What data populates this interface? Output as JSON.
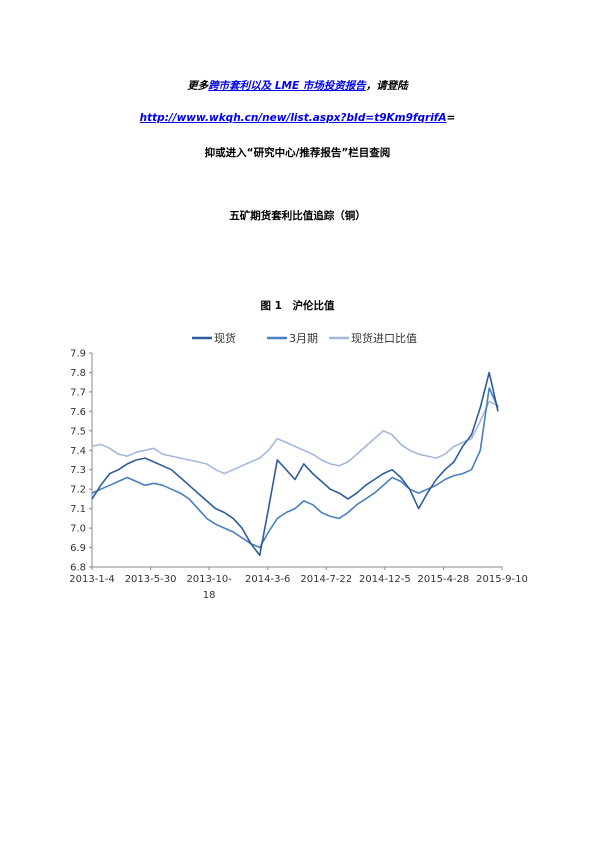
{
  "header": {
    "line1_pre": "更多",
    "line1_link": "跨市套利以及 LME 市场投资报告",
    "line1_post": "，请登陆",
    "url": "http://www.wkqh.cn/new/list.aspx?bId=t9Km9fqrifA",
    "url_suffix": "=",
    "line3": "抑或进入“研究中心/推荐报告”栏目查阅"
  },
  "section_title": "五矿期货套利比值追踪（铜）",
  "figure_caption": "图 1　沪伦比值",
  "colors": {
    "spot": "#2e5c9a",
    "m3": "#4a7fc1",
    "import": "#a2b9dc"
  },
  "chart_data": {
    "type": "line",
    "x_ticks": [
      "2013-1-4",
      "2013-5-30",
      "2013-10-18",
      "2014-3-6",
      "2014-7-22",
      "2014-12-5",
      "2015-4-28",
      "2015-9-10"
    ],
    "y_ticks": [
      "6.8",
      "6.9",
      "7.0",
      "7.1",
      "7.2",
      "7.3",
      "7.4",
      "7.5",
      "7.6",
      "7.7",
      "7.8",
      "7.9"
    ],
    "ylim": [
      6.8,
      7.9
    ],
    "legend_position": "top",
    "series": [
      {
        "name": "现货",
        "color": "#2e5c9a",
        "values": [
          7.15,
          7.22,
          7.28,
          7.3,
          7.33,
          7.35,
          7.36,
          7.34,
          7.32,
          7.3,
          7.26,
          7.22,
          7.18,
          7.14,
          7.1,
          7.08,
          7.05,
          7.0,
          6.92,
          6.86,
          7.1,
          7.35,
          7.3,
          7.25,
          7.33,
          7.28,
          7.24,
          7.2,
          7.18,
          7.15,
          7.18,
          7.22,
          7.25,
          7.28,
          7.3,
          7.26,
          7.2,
          7.1,
          7.18,
          7.25,
          7.3,
          7.34,
          7.42,
          7.48,
          7.62,
          7.8,
          7.6
        ]
      },
      {
        "name": "3月期",
        "color": "#4a7fc1",
        "values": [
          7.18,
          7.2,
          7.22,
          7.24,
          7.26,
          7.24,
          7.22,
          7.23,
          7.22,
          7.2,
          7.18,
          7.15,
          7.1,
          7.05,
          7.02,
          7.0,
          6.98,
          6.95,
          6.92,
          6.9,
          6.98,
          7.05,
          7.08,
          7.1,
          7.14,
          7.12,
          7.08,
          7.06,
          7.05,
          7.08,
          7.12,
          7.15,
          7.18,
          7.22,
          7.26,
          7.24,
          7.2,
          7.18,
          7.2,
          7.22,
          7.25,
          7.27,
          7.28,
          7.3,
          7.4,
          7.72,
          7.62
        ]
      },
      {
        "name": "现货进口比值",
        "color": "#a2b9dc",
        "values": [
          7.42,
          7.43,
          7.41,
          7.38,
          7.37,
          7.39,
          7.4,
          7.41,
          7.38,
          7.37,
          7.36,
          7.35,
          7.34,
          7.33,
          7.3,
          7.28,
          7.3,
          7.32,
          7.34,
          7.36,
          7.4,
          7.46,
          7.44,
          7.42,
          7.4,
          7.38,
          7.35,
          7.33,
          7.32,
          7.34,
          7.38,
          7.42,
          7.46,
          7.5,
          7.48,
          7.43,
          7.4,
          7.38,
          7.37,
          7.36,
          7.38,
          7.42,
          7.44,
          7.46,
          7.55,
          7.65,
          7.63
        ]
      }
    ]
  }
}
